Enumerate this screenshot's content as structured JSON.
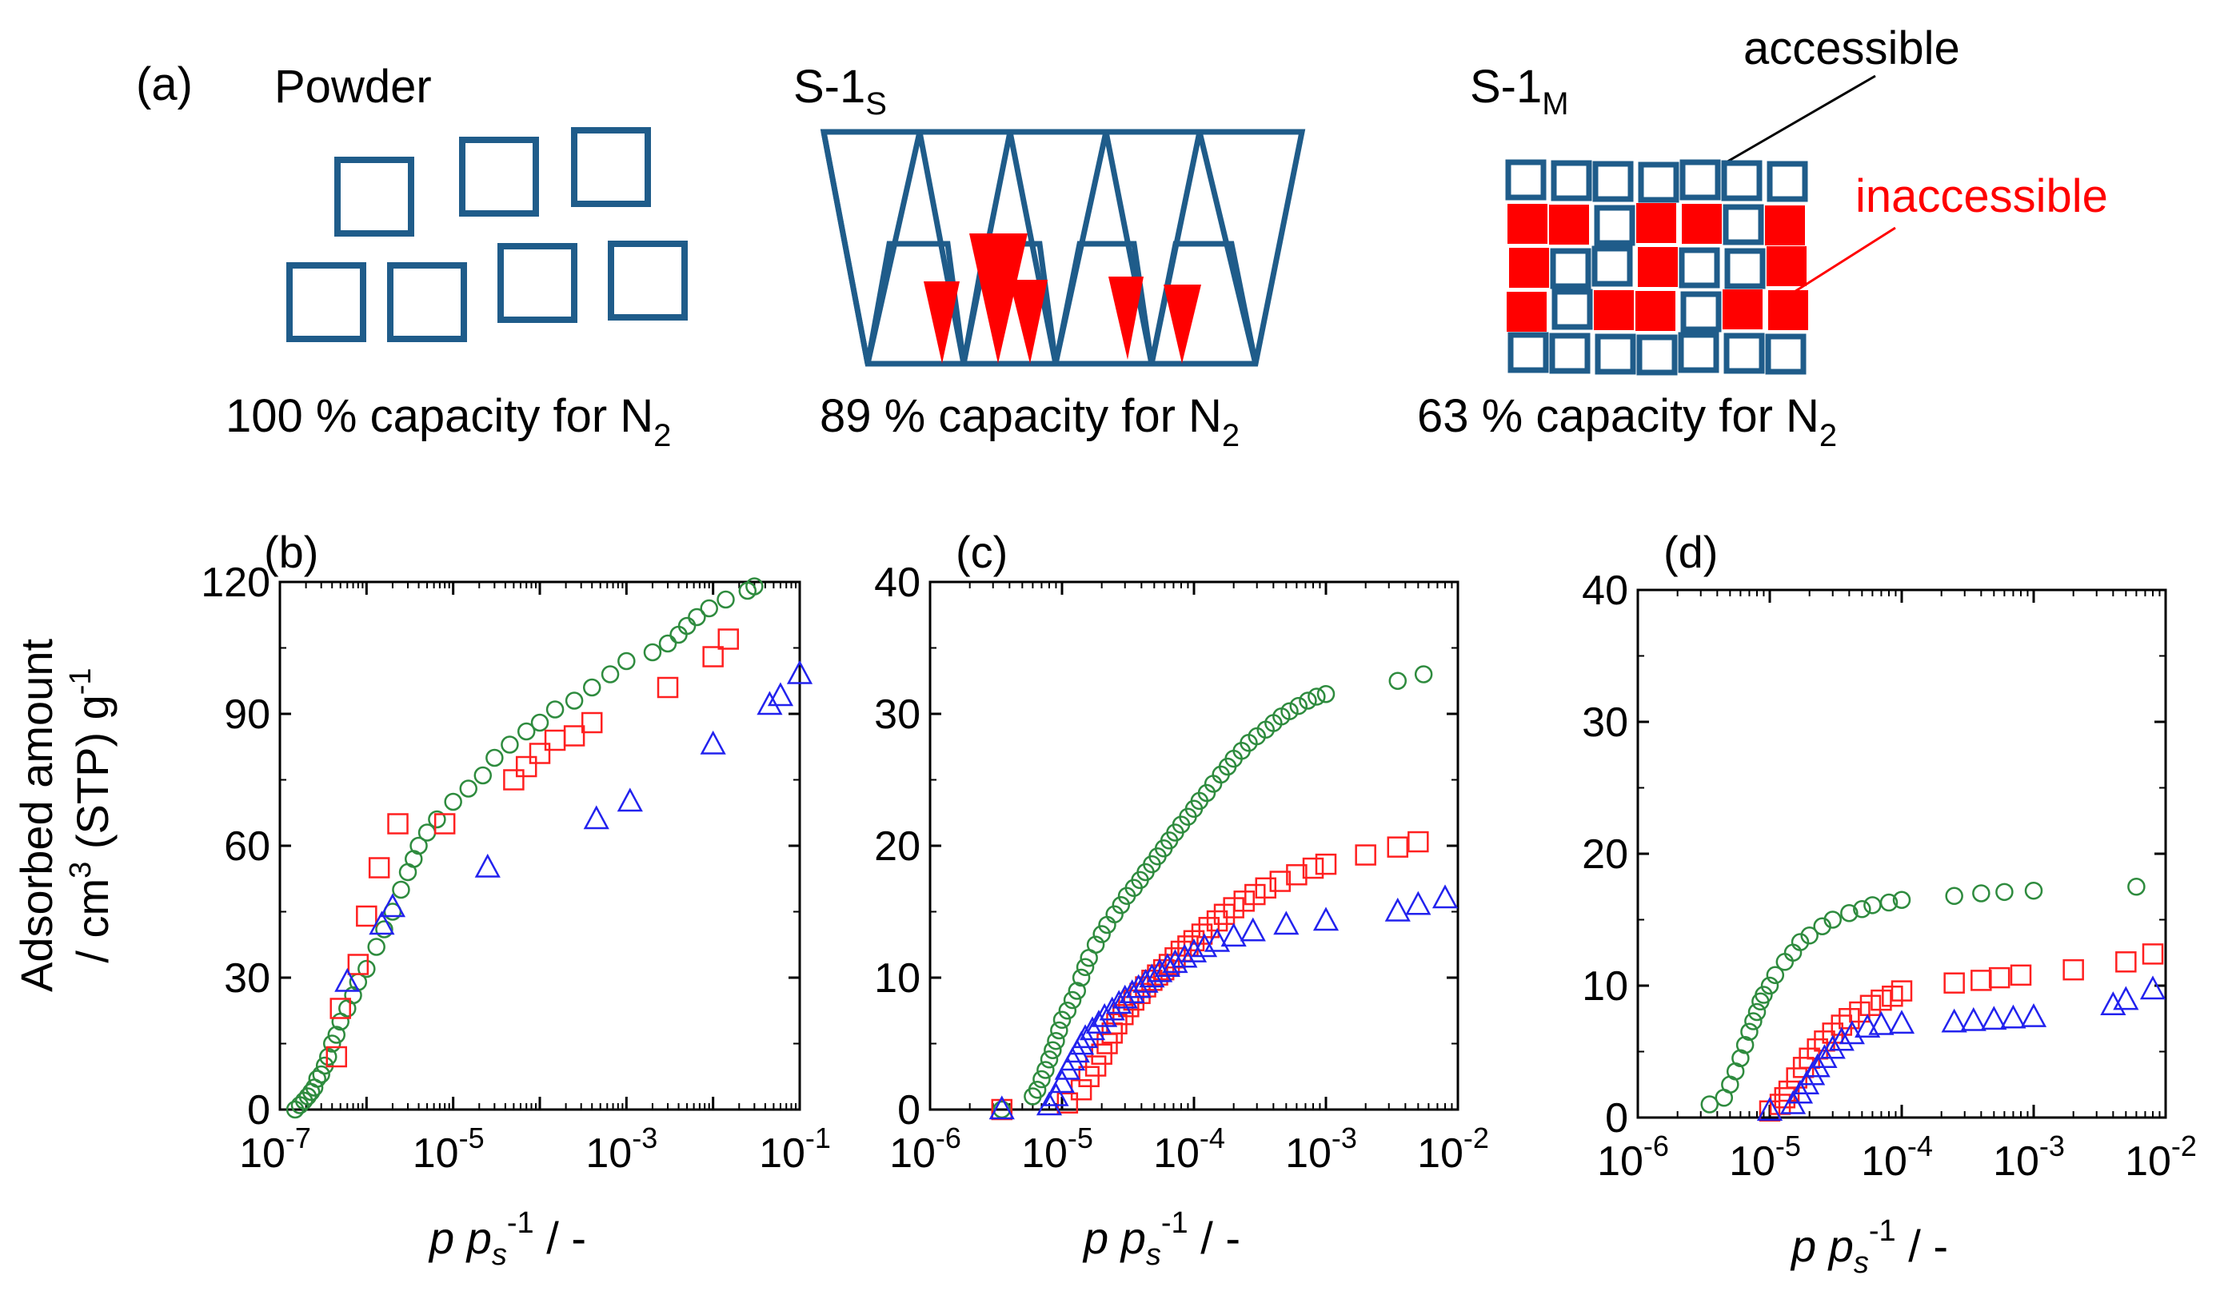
{
  "figure_label_a": "(a)",
  "schematic": {
    "colors": {
      "frame": "#1f5c8a",
      "red": "#ff0000",
      "green": "#2e8b3e",
      "blue": "#2222ee"
    },
    "powder": {
      "title": "Powder",
      "capacity_text": "100 % capacity for N",
      "sub": "2"
    },
    "s1s": {
      "title": "S-1",
      "title_sub": "S",
      "capacity_text": "89 % capacity for N",
      "sub": "2"
    },
    "s1m": {
      "title": "S-1",
      "title_sub": "M",
      "capacity_text": "63 % capacity for N",
      "sub": "2",
      "accessible": "accessible",
      "inaccessible": "inaccessible"
    }
  },
  "axes_common": {
    "ylabel_line1": "Adsorbed amount",
    "ylabel_line2_a": "/ cm",
    "ylabel_line2_sup": "3",
    "ylabel_line2_b": " (STP) g",
    "ylabel_line2_sup2": "-1",
    "xlabel_p": "p",
    "xlabel_ps": "p",
    "xlabel_s": "s",
    "xlabel_sup": "-1",
    "xlabel_tail": " / -"
  },
  "chart_data": [
    {
      "panel": "(b)",
      "type": "scatter",
      "xscale": "log",
      "xlim_exp": [
        -7,
        -1
      ],
      "ylim": [
        0,
        120
      ],
      "yticks": [
        "0",
        "30",
        "60",
        "90",
        "120"
      ],
      "xtick_exps": [
        "-7",
        "-5",
        "-3",
        "-1"
      ],
      "series": [
        {
          "name": "green circles",
          "marker": "circle",
          "color": "#2e8b3e",
          "x": [
            1.5e-07,
            1.7e-07,
            1.9e-07,
            2.1e-07,
            2.3e-07,
            2.5e-07,
            2.7e-07,
            3e-07,
            3.3e-07,
            3.6e-07,
            4e-07,
            4.5e-07,
            5e-07,
            6e-07,
            7e-07,
            8e-07,
            1e-06,
            1.3e-06,
            1.6e-06,
            2e-06,
            2.5e-06,
            3e-06,
            3.5e-06,
            4e-06,
            5e-06,
            6.5e-06,
            1e-05,
            1.5e-05,
            2.2e-05,
            3e-05,
            4.5e-05,
            7e-05,
            0.0001,
            0.00015,
            0.00025,
            0.0004,
            0.00065,
            0.001,
            0.002,
            0.003,
            0.004,
            0.005,
            0.0065,
            0.009,
            0.014,
            0.025,
            0.03
          ],
          "y": [
            0,
            1,
            2,
            3,
            4,
            5,
            7,
            8,
            10,
            12,
            15,
            17,
            20,
            23,
            26,
            29,
            32,
            37,
            41,
            45,
            50,
            54,
            57,
            60,
            63,
            66,
            70,
            73,
            76,
            80,
            83,
            86,
            88,
            91,
            93,
            96,
            99,
            102,
            104,
            106,
            108,
            110,
            112,
            114,
            116,
            118,
            119
          ]
        },
        {
          "name": "red squares",
          "marker": "square",
          "color": "#ff2020",
          "x": [
            4.5e-07,
            5e-07,
            8e-07,
            1e-06,
            1.4e-06,
            2.3e-06,
            8e-06,
            5e-05,
            7e-05,
            0.0001,
            0.00015,
            0.00025,
            0.0004,
            0.003,
            0.01,
            0.015
          ],
          "y": [
            12,
            23,
            33,
            44,
            55,
            65,
            65,
            75,
            78,
            81,
            84,
            85,
            88,
            96,
            103,
            107
          ]
        },
        {
          "name": "blue triangles",
          "marker": "triangle",
          "color": "#2222ee",
          "x": [
            6e-07,
            1.5e-06,
            2e-06,
            2.5e-05,
            0.00045,
            0.0011,
            0.01,
            0.045,
            0.06,
            0.1
          ],
          "y": [
            29,
            42,
            46,
            55,
            66,
            70,
            83,
            92,
            94,
            99
          ]
        }
      ]
    },
    {
      "panel": "(c)",
      "type": "scatter",
      "xscale": "log",
      "xlim_exp": [
        -6,
        -2
      ],
      "ylim": [
        0,
        40
      ],
      "yticks": [
        "0",
        "10",
        "20",
        "30",
        "40"
      ],
      "xtick_exps": [
        "-6",
        "-5",
        "-4",
        "-3",
        "-2"
      ],
      "series": [
        {
          "name": "green circles",
          "marker": "circle",
          "color": "#2e8b3e",
          "x": [
            3.5e-06,
            6e-06,
            6.5e-06,
            7e-06,
            7.5e-06,
            8e-06,
            8.5e-06,
            9e-06,
            9.5e-06,
            1e-05,
            1.1e-05,
            1.2e-05,
            1.3e-05,
            1.4e-05,
            1.5e-05,
            1.6e-05,
            1.8e-05,
            2e-05,
            2.2e-05,
            2.5e-05,
            2.8e-05,
            3.1e-05,
            3.5e-05,
            3.9e-05,
            4.3e-05,
            4.8e-05,
            5.3e-05,
            5.9e-05,
            6.5e-05,
            7.2e-05,
            8e-05,
            9e-05,
            0.0001,
            0.00011,
            0.000125,
            0.00014,
            0.00016,
            0.00018,
            0.0002,
            0.00023,
            0.00026,
            0.0003,
            0.00035,
            0.0004,
            0.00046,
            0.00053,
            0.00062,
            0.00073,
            0.00085,
            0.001,
            0.0035,
            0.0055
          ],
          "y": [
            0,
            1,
            1.5,
            2.3,
            3,
            3.8,
            4.5,
            5.2,
            6,
            6.8,
            7.5,
            8.3,
            9,
            10,
            10.8,
            11.5,
            12.5,
            13.3,
            14,
            14.8,
            15.5,
            16.2,
            16.8,
            17.4,
            18,
            18.6,
            19.2,
            19.8,
            20.4,
            21,
            21.6,
            22.2,
            22.8,
            23.4,
            24,
            24.7,
            25.4,
            26,
            26.6,
            27.2,
            27.8,
            28.3,
            28.8,
            29.3,
            29.8,
            30.2,
            30.6,
            31,
            31.3,
            31.5,
            32.5,
            33
          ]
        },
        {
          "name": "red squares",
          "marker": "square",
          "color": "#ff2020",
          "x": [
            3.5e-06,
            1.1e-05,
            1.4e-05,
            1.6e-05,
            1.8e-05,
            2e-05,
            2.2e-05,
            2.4e-05,
            2.6e-05,
            2.9e-05,
            3.2e-05,
            3.5e-05,
            3.9e-05,
            4.3e-05,
            4.8e-05,
            5.3e-05,
            5.9e-05,
            6.5e-05,
            7.2e-05,
            8e-05,
            9e-05,
            0.0001,
            0.000115,
            0.00013,
            0.00015,
            0.00017,
            0.0002,
            0.00024,
            0.00029,
            0.00035,
            0.00045,
            0.0006,
            0.0008,
            0.001,
            0.002,
            0.0035,
            0.005
          ],
          "y": [
            0,
            0.5,
            1.5,
            2.5,
            3.3,
            4.2,
            5,
            5.8,
            6.5,
            7.2,
            7.8,
            8.3,
            8.8,
            9.3,
            9.8,
            10.2,
            10.6,
            11,
            11.5,
            12,
            12.4,
            12.8,
            13.3,
            13.8,
            14.3,
            14.8,
            15.3,
            15.8,
            16.3,
            16.8,
            17.3,
            17.8,
            18.3,
            18.6,
            19.3,
            19.9,
            20.3
          ]
        },
        {
          "name": "blue triangles",
          "marker": "triangle",
          "color": "#2222ee",
          "x": [
            3.5e-06,
            8e-06,
            9e-06,
            1e-05,
            1.1e-05,
            1.2e-05,
            1.3e-05,
            1.4e-05,
            1.5e-05,
            1.7e-05,
            1.9e-05,
            2.1e-05,
            2.4e-05,
            2.7e-05,
            3e-05,
            3.4e-05,
            3.8e-05,
            4.3e-05,
            4.8e-05,
            5.5e-05,
            6.3e-05,
            7.2e-05,
            8.5e-05,
            0.0001,
            0.00012,
            0.00015,
            0.0002,
            0.00028,
            0.0005,
            0.001,
            0.0035,
            0.005,
            0.008
          ],
          "y": [
            0,
            0.3,
            1,
            2,
            3,
            3.7,
            4.3,
            4.9,
            5.4,
            6,
            6.5,
            7,
            7.5,
            8,
            8.4,
            8.8,
            9.2,
            9.6,
            10,
            10.4,
            10.8,
            11.1,
            11.5,
            11.9,
            12.3,
            12.7,
            13.1,
            13.5,
            14,
            14.3,
            15,
            15.5,
            16
          ]
        }
      ]
    },
    {
      "panel": "(d)",
      "type": "scatter",
      "xscale": "log",
      "xlim_exp": [
        -6,
        -2
      ],
      "ylim": [
        0,
        40
      ],
      "yticks": [
        "0",
        "10",
        "20",
        "30",
        "40"
      ],
      "xtick_exps": [
        "-6",
        "-5",
        "-4",
        "-3",
        "-2"
      ],
      "series": [
        {
          "name": "green circles",
          "marker": "circle",
          "color": "#2e8b3e",
          "x": [
            3.5e-06,
            4.5e-06,
            5e-06,
            5.5e-06,
            6e-06,
            6.5e-06,
            7e-06,
            7.5e-06,
            8e-06,
            8.5e-06,
            9e-06,
            1e-05,
            1.1e-05,
            1.3e-05,
            1.5e-05,
            1.7e-05,
            2e-05,
            2.5e-05,
            3e-05,
            4e-05,
            5e-05,
            6e-05,
            8e-05,
            0.0001,
            0.00025,
            0.0004,
            0.0006,
            0.001,
            0.006
          ],
          "y": [
            1,
            1.5,
            2.5,
            3.5,
            4.5,
            5.5,
            6.5,
            7.3,
            8,
            8.8,
            9.3,
            10,
            10.8,
            11.8,
            12.5,
            13.3,
            13.8,
            14.5,
            15,
            15.5,
            15.8,
            16.1,
            16.3,
            16.5,
            16.8,
            17,
            17.1,
            17.2,
            17.5
          ]
        },
        {
          "name": "red squares",
          "marker": "square",
          "color": "#ff2020",
          "x": [
            1e-05,
            1.2e-05,
            1.3e-05,
            1.4e-05,
            1.6e-05,
            1.8e-05,
            2e-05,
            2.3e-05,
            2.6e-05,
            3e-05,
            3.5e-05,
            4e-05,
            4.8e-05,
            5.8e-05,
            7e-05,
            8.5e-05,
            0.0001,
            0.00025,
            0.0004,
            0.00055,
            0.0008,
            0.002,
            0.005,
            0.008
          ],
          "y": [
            0.5,
            1,
            1.5,
            2,
            3,
            3.8,
            4.5,
            5.2,
            5.8,
            6.4,
            7,
            7.5,
            8,
            8.5,
            8.9,
            9.2,
            9.6,
            10.2,
            10.4,
            10.6,
            10.8,
            11.2,
            11.8,
            12.4
          ]
        },
        {
          "name": "blue triangles",
          "marker": "triangle",
          "color": "#2222ee",
          "x": [
            1e-05,
            1.5e-05,
            1.7e-05,
            1.9e-05,
            2.1e-05,
            2.3e-05,
            2.6e-05,
            3e-05,
            3.5e-05,
            4.2e-05,
            5.5e-05,
            7e-05,
            0.0001,
            0.00025,
            0.00035,
            0.0005,
            0.0007,
            0.001,
            0.004,
            0.005,
            0.008
          ],
          "y": [
            0.5,
            1,
            1.8,
            2.5,
            3.2,
            3.8,
            4.5,
            5.2,
            5.8,
            6.3,
            6.8,
            7,
            7.1,
            7.2,
            7.3,
            7.4,
            7.5,
            7.6,
            8.5,
            8.9,
            9.7
          ]
        }
      ]
    }
  ]
}
